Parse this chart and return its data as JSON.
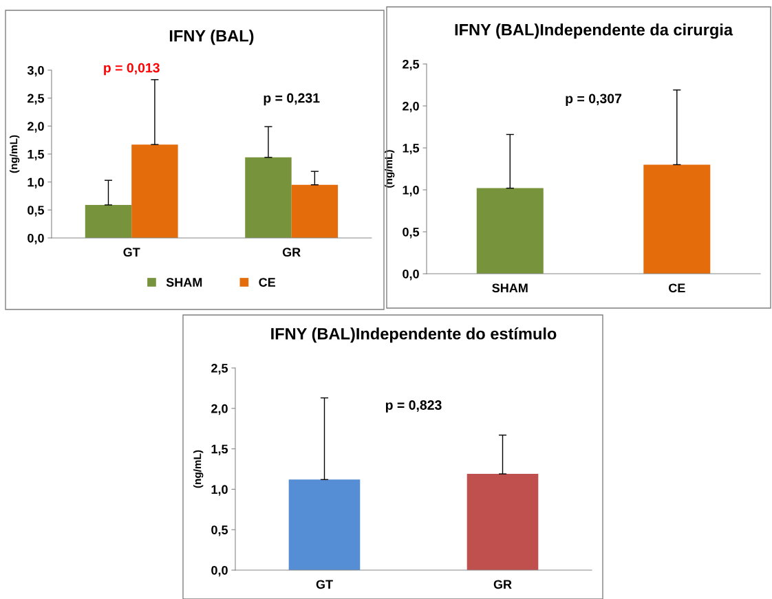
{
  "chart_data": [
    {
      "type": "bar",
      "title": "IFNY (BAL)",
      "ylabel": "(ng/mL)",
      "categories": [
        "GT",
        "GR"
      ],
      "series": [
        {
          "name": "SHAM",
          "color": "#77933c",
          "values": [
            0.59,
            1.44
          ],
          "errors": [
            [
              0.59,
              1.03
            ],
            [
              1.44,
              1.99
            ]
          ]
        },
        {
          "name": "CE",
          "color": "#e46c0a",
          "values": [
            1.67,
            0.95
          ],
          "errors": [
            [
              1.67,
              2.83
            ],
            [
              0.95,
              1.19
            ]
          ]
        }
      ],
      "ylim": [
        0,
        3.0
      ],
      "yticks": [
        {
          "value": 0,
          "label": "0,0"
        },
        {
          "value": 0.5,
          "label": "0,5"
        },
        {
          "value": 1.0,
          "label": "1,0"
        },
        {
          "value": 1.5,
          "label": "1,5"
        },
        {
          "value": 2.0,
          "label": "2,0"
        },
        {
          "value": 2.5,
          "label": "2,5"
        },
        {
          "value": 3.0,
          "label": "3,0"
        }
      ],
      "annotations": [
        "p = 0,013",
        "p = 0,231"
      ],
      "legend": "bottom",
      "grid": false
    },
    {
      "type": "bar",
      "title": "IFNY (BAL)Independente da cirurgia",
      "ylabel": "(ng/mL)",
      "categories": [
        "SHAM",
        "CE"
      ],
      "values": [
        1.02,
        1.3
      ],
      "colors": [
        "#77933c",
        "#e46c0a"
      ],
      "errors": [
        [
          1.02,
          1.66
        ],
        [
          1.3,
          2.19
        ]
      ],
      "ylim": [
        0,
        2.5
      ],
      "yticks": [
        {
          "value": 0,
          "label": "0,0"
        },
        {
          "value": 0.5,
          "label": "0,5"
        },
        {
          "value": 1.0,
          "label": "1,0"
        },
        {
          "value": 1.5,
          "label": "1,5"
        },
        {
          "value": 2.0,
          "label": "2,0"
        },
        {
          "value": 2.5,
          "label": "2,5"
        }
      ],
      "annotations": [
        "p = 0,307"
      ],
      "grid": false
    },
    {
      "type": "bar",
      "title": "IFNY (BAL)Independente do estímulo",
      "ylabel": "(ng/mL)",
      "categories": [
        "GT",
        "GR"
      ],
      "values": [
        1.12,
        1.19
      ],
      "colors": [
        "#558ed5",
        "#c0504d"
      ],
      "errors": [
        [
          1.12,
          2.13
        ],
        [
          1.19,
          1.67
        ]
      ],
      "ylim": [
        0,
        2.5
      ],
      "yticks": [
        {
          "value": 0,
          "label": "0,0"
        },
        {
          "value": 0.5,
          "label": "0,5"
        },
        {
          "value": 1.0,
          "label": "1,0"
        },
        {
          "value": 1.5,
          "label": "1,5"
        },
        {
          "value": 2.0,
          "label": "2,0"
        },
        {
          "value": 2.5,
          "label": "2,5"
        }
      ],
      "annotations": [
        "p = 0,823"
      ],
      "grid": false
    }
  ]
}
